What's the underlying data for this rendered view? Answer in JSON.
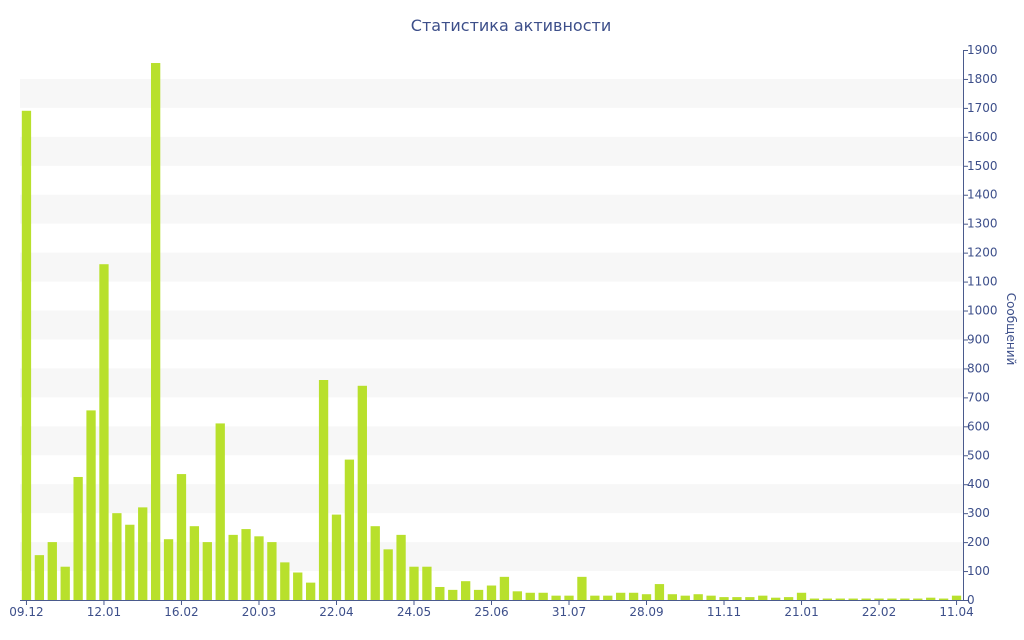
{
  "chart_data": {
    "type": "bar",
    "title": "Статистика активности",
    "xlabel": "",
    "ylabel": "Сообщений",
    "y_axis_side": "right",
    "ylim": [
      0,
      1900
    ],
    "y_ticks": [
      0,
      100,
      200,
      300,
      400,
      500,
      600,
      700,
      800,
      900,
      1000,
      1100,
      1200,
      1300,
      1400,
      1500,
      1600,
      1700,
      1800,
      1900
    ],
    "x_tick_labels": [
      {
        "label": "09.12",
        "index": 0
      },
      {
        "label": "12.01",
        "index": 6
      },
      {
        "label": "16.02",
        "index": 12
      },
      {
        "label": "20.03",
        "index": 18
      },
      {
        "label": "22.04",
        "index": 24
      },
      {
        "label": "24.05",
        "index": 30
      },
      {
        "label": "25.06",
        "index": 36
      },
      {
        "label": "31.07",
        "index": 42
      },
      {
        "label": "28.09",
        "index": 48
      },
      {
        "label": "11.11",
        "index": 54
      },
      {
        "label": "21.01",
        "index": 60
      },
      {
        "label": "22.02",
        "index": 66
      },
      {
        "label": "11.04",
        "index": 72
      }
    ],
    "series": [
      {
        "values": [
          1690,
          155,
          200,
          115,
          425,
          655,
          1160,
          300,
          260,
          320,
          1855,
          210,
          435,
          255,
          200,
          610,
          225,
          245,
          220,
          200,
          130,
          95,
          60,
          760,
          295,
          485,
          740,
          255,
          175,
          225,
          115,
          115,
          45,
          35,
          65,
          35,
          50,
          80,
          30,
          25,
          25,
          15,
          15,
          80,
          15,
          15,
          25,
          25,
          20,
          55,
          20,
          15,
          20,
          15,
          10,
          10,
          10,
          15,
          8,
          10,
          25,
          5,
          5,
          5,
          5,
          5,
          5,
          5,
          5,
          5,
          8,
          5,
          15
        ]
      }
    ],
    "grid": true,
    "legend": "none",
    "colors": {
      "bar": "#b8e02c",
      "grid_band": "#f7f7f7",
      "text": "#3d4f8a",
      "axis": "#4a5a8c"
    }
  }
}
